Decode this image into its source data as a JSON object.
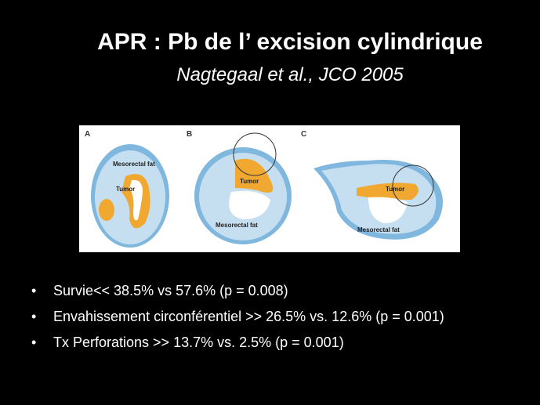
{
  "header": {
    "title": "APR : Pb de l’ excision cylindrique",
    "subtitle": "Nagtegaal et al., JCO 2005"
  },
  "figure": {
    "panels": [
      {
        "letter": "A",
        "labels": [
          "Mesorectal fat",
          "Tumor"
        ]
      },
      {
        "letter": "B",
        "labels": [
          "Tumor",
          "Mesorectal fat"
        ]
      },
      {
        "letter": "C",
        "labels": [
          "Tumor",
          "Mesorectal fat"
        ]
      }
    ]
  },
  "bullets": [
    "Survie<< 38.5% vs 57.6% (p = 0.008)",
    "Envahissement circonférentiel >> 26.5% vs. 12.6% (p = 0.001)",
    "Tx Perforations >> 13.7% vs. 2.5% (p = 0.001)"
  ]
}
